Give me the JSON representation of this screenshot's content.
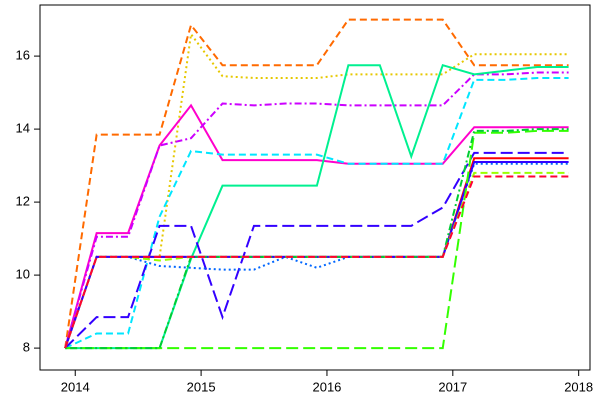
{
  "chart_data": {
    "type": "line",
    "x": [
      2013.92,
      2014.17,
      2014.42,
      2014.67,
      2014.92,
      2015.17,
      2015.42,
      2015.67,
      2015.92,
      2016.17,
      2016.42,
      2016.67,
      2016.92,
      2017.17,
      2017.42,
      2017.67,
      2017.92
    ],
    "xlim": [
      2013.72,
      2018.09
    ],
    "xticks": [
      2014,
      2015,
      2016,
      2017,
      2018
    ],
    "ylim": [
      7.4,
      17.4
    ],
    "yticks": [
      8,
      10,
      12,
      14,
      16
    ],
    "grid": false,
    "series": [
      {
        "color": "#ff6a00",
        "dash": "dashed",
        "values": [
          8,
          13.85,
          13.85,
          13.85,
          16.85,
          15.75,
          15.75,
          15.75,
          15.75,
          17,
          17,
          17,
          17,
          15.75,
          15.75,
          15.75,
          15.75
        ]
      },
      {
        "color": "#e6c800",
        "dash": "dotted",
        "values": [
          8,
          10.5,
          10.5,
          10.5,
          16.6,
          15.45,
          15.4,
          15.4,
          15.4,
          15.5,
          15.5,
          15.5,
          15.5,
          16.05,
          16.05,
          16.05,
          16.05
        ]
      },
      {
        "color": "#ff00cc",
        "dash": "solid",
        "values": [
          8,
          11.15,
          11.15,
          13.55,
          14.65,
          13.15,
          13.15,
          13.15,
          13.15,
          13.05,
          13.05,
          13.05,
          13.05,
          14.05,
          14.05,
          14.05,
          14.05
        ]
      },
      {
        "color": "#cc00ff",
        "dash": "dotdash",
        "values": [
          8,
          11.05,
          11.05,
          13.55,
          13.75,
          14.7,
          14.65,
          14.7,
          14.7,
          14.65,
          14.65,
          14.65,
          14.65,
          15.5,
          15.5,
          15.55,
          15.55
        ]
      },
      {
        "color": "#00e6ff",
        "dash": "dashed",
        "values": [
          8,
          8.4,
          8.4,
          11.6,
          13.4,
          13.3,
          13.3,
          13.3,
          13.3,
          13.05,
          13.05,
          13.05,
          13.05,
          15.35,
          15.35,
          15.4,
          15.4
        ]
      },
      {
        "color": "#00f090",
        "dash": "solid",
        "values": [
          8,
          8,
          8,
          8,
          10.45,
          12.45,
          12.45,
          12.45,
          12.45,
          15.75,
          15.75,
          13.25,
          15.75,
          15.5,
          15.6,
          15.7,
          15.7
        ]
      },
      {
        "color": "#3300ff",
        "dash": "longdash",
        "values": [
          8,
          8.85,
          8.85,
          11.35,
          11.35,
          8.85,
          11.35,
          11.35,
          11.35,
          11.35,
          11.35,
          11.35,
          11.85,
          13.35,
          13.35,
          13.35,
          13.35
        ]
      },
      {
        "color": "#0066ff",
        "dash": "dotted",
        "values": [
          8,
          10.5,
          10.5,
          10.25,
          10.2,
          10.15,
          10.15,
          10.5,
          10.2,
          10.5,
          10.5,
          10.5,
          10.5,
          13.05,
          13.05,
          13.05,
          13.05
        ]
      },
      {
        "color": "#ff0000",
        "dash": "solid",
        "values": [
          8,
          10.5,
          10.5,
          10.5,
          10.5,
          10.5,
          10.5,
          10.5,
          10.5,
          10.5,
          10.5,
          10.5,
          10.5,
          13.2,
          13.2,
          13.2,
          13.2
        ]
      },
      {
        "color": "#3300ff",
        "dash": "solid",
        "values": [
          8,
          10.5,
          10.5,
          10.5,
          10.5,
          10.5,
          10.5,
          10.5,
          10.5,
          10.5,
          10.5,
          10.5,
          10.5,
          13.1,
          13.1,
          13.1,
          13.1
        ]
      },
      {
        "color": "#33ff00",
        "dash": "longdash",
        "values": [
          8,
          8,
          8,
          8,
          8,
          8,
          8,
          8,
          8,
          8,
          8,
          8,
          8,
          13.9,
          13.9,
          13.95,
          13.95
        ]
      },
      {
        "color": "#00cc33",
        "dash": "dotdash",
        "values": [
          8,
          8,
          8,
          8,
          10.5,
          10.5,
          10.5,
          10.5,
          10.5,
          10.5,
          10.5,
          10.5,
          10.5,
          13.95,
          13.95,
          14,
          14
        ]
      },
      {
        "color": "#99ff00",
        "dash": "dashed",
        "values": [
          8,
          10.5,
          10.5,
          10.4,
          10.5,
          10.5,
          10.5,
          10.5,
          10.5,
          10.5,
          10.5,
          10.5,
          10.5,
          12.8,
          12.8,
          12.8,
          12.8
        ]
      },
      {
        "color": "#ff0033",
        "dash": "dashed",
        "values": [
          8,
          10.5,
          10.5,
          10.5,
          10.5,
          10.5,
          10.5,
          10.5,
          10.5,
          10.5,
          10.5,
          10.5,
          10.5,
          12.7,
          12.7,
          12.7,
          12.7
        ]
      }
    ]
  }
}
